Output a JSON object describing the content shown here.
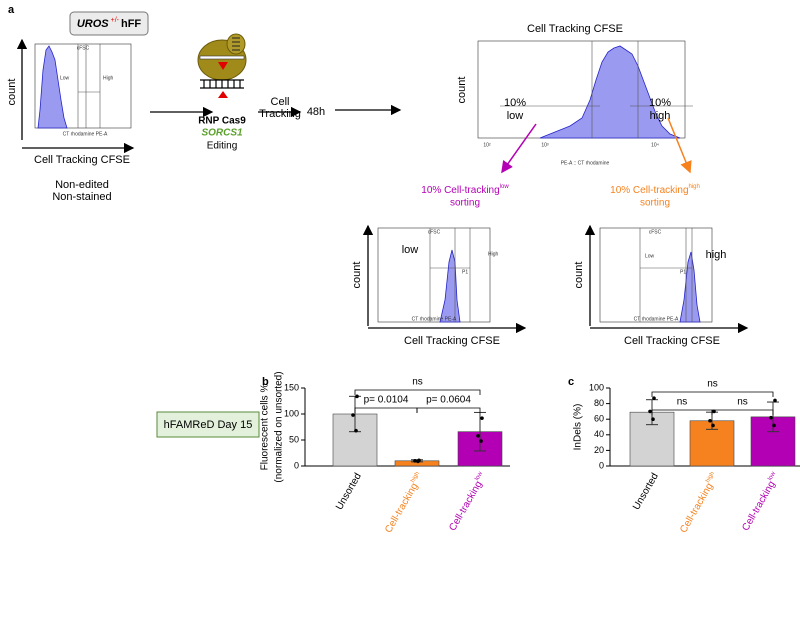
{
  "panel_a": {
    "label": "a",
    "cell_line": {
      "gene": "UROS",
      "genotype": "+/-",
      "line": "hFF"
    },
    "plot_initial": {
      "title": "cFSC",
      "low": "Low",
      "high": "High",
      "x_axis": "CT rhodamine PE-A",
      "y_label": "count",
      "x_label": "Cell Tracking CFSE"
    },
    "initial_caption": [
      "Non-edited",
      "Non-stained"
    ],
    "editing": {
      "line1": "RNP Cas9",
      "gene": "SORCS1",
      "line3": "Editing"
    },
    "step": [
      "Cell",
      "Tracking"
    ],
    "time": "48h",
    "main_plot": {
      "title": "Cell Tracking CFSE",
      "y_label": "count",
      "x_label": "PE-A :: CT rhodamine",
      "x_ticks": [
        "10²",
        "10³",
        "10⁴"
      ],
      "low_pct": "10%",
      "low": "low",
      "high_pct": "10%",
      "high": "high"
    },
    "sort_low": {
      "text": "10% Cell-tracking",
      "sup": "low",
      "line2": "sorting"
    },
    "sort_high": {
      "text": "10% Cell-tracking",
      "sup": "high",
      "line2": "sorting"
    },
    "plot_low": {
      "title": "cFSC",
      "gate": "P1",
      "high": "High",
      "low": "low",
      "x_axis": "CT rhodamine PE-A",
      "y_label": "count",
      "x_label": "Cell Tracking CFSE"
    },
    "plot_high": {
      "title": "cFSC",
      "gate": "P1",
      "low": "Low",
      "high": "high",
      "x_axis": "CT rhodamine PE-A",
      "y_label": "count",
      "x_label": "Cell Tracking CFSE"
    }
  },
  "label_box": "hFAMReD Day 15",
  "chart_data": [
    {
      "type": "bar",
      "label": "b",
      "y_label": [
        "Fluorescent cells %",
        "(normalized on unsorted)"
      ],
      "categories": [
        "Unsorted",
        {
          "text": "Cell-tracking",
          "sup": "high"
        },
        {
          "text": "Cell-tracking",
          "sup": "low"
        }
      ],
      "colors": [
        "#d3d3d3",
        "#f5821f",
        "#b400b4"
      ],
      "label_colors": [
        "#000000",
        "#f5821f",
        "#b400b4"
      ],
      "values": [
        100,
        10,
        66
      ],
      "errors": [
        34,
        2,
        37
      ],
      "points": [
        [
          134,
          98,
          68
        ],
        [
          11,
          10,
          9
        ],
        [
          92,
          58,
          48
        ]
      ],
      "ylim": [
        0,
        150
      ],
      "yticks": [
        0,
        50,
        100,
        150
      ],
      "annotations": [
        "ns",
        "p= 0.0104",
        "p= 0.0604"
      ]
    },
    {
      "type": "bar",
      "label": "c",
      "y_label": [
        "InDels (%)"
      ],
      "categories": [
        "Unsorted",
        {
          "text": "Cell-tracking",
          "sup": "high"
        },
        {
          "text": "Cell-tracking",
          "sup": "low"
        }
      ],
      "colors": [
        "#d3d3d3",
        "#f5821f",
        "#b400b4"
      ],
      "label_colors": [
        "#000000",
        "#f5821f",
        "#b400b4"
      ],
      "values": [
        69,
        58,
        63
      ],
      "errors": [
        16,
        11,
        19
      ],
      "points": [
        [
          87,
          70,
          60
        ],
        [
          70,
          58,
          52
        ],
        [
          84,
          62,
          52
        ]
      ],
      "ylim": [
        0,
        100
      ],
      "yticks": [
        0,
        20,
        40,
        60,
        80,
        100
      ],
      "annotations": [
        "ns",
        "ns",
        "ns"
      ]
    }
  ]
}
